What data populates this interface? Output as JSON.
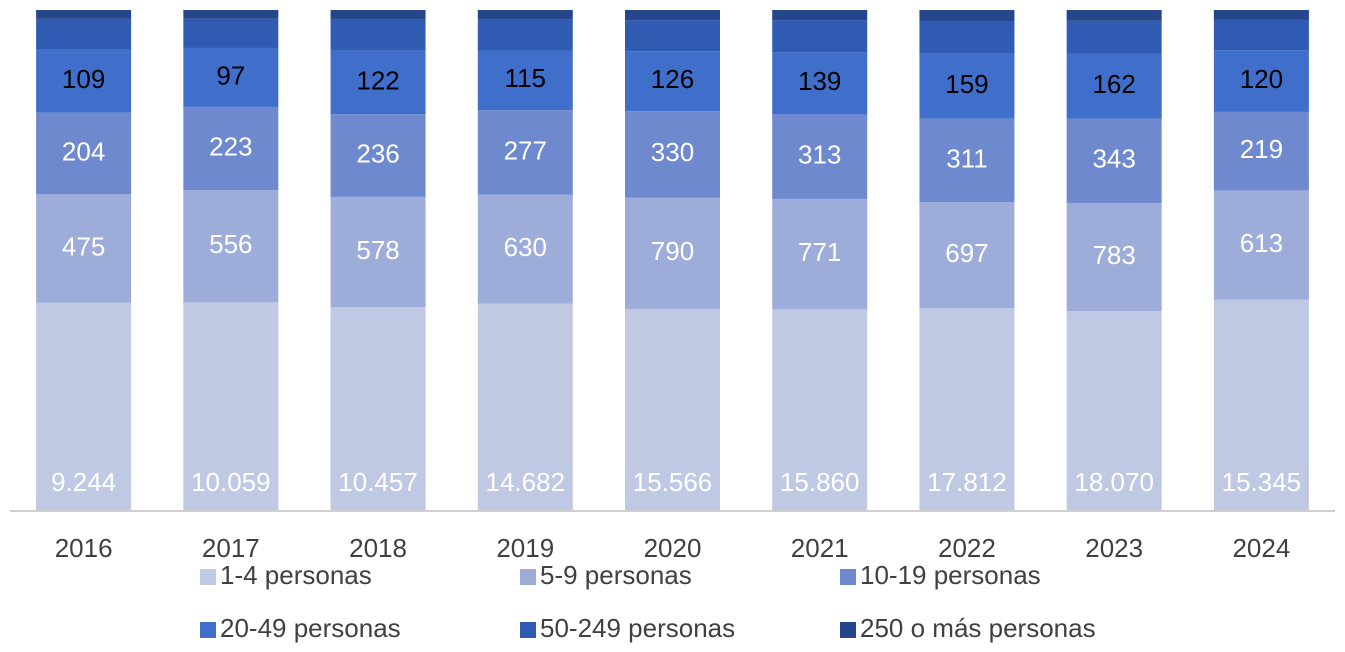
{
  "chart_data": {
    "type": "bar",
    "stacked": true,
    "categories": [
      "2016",
      "2017",
      "2018",
      "2019",
      "2020",
      "2021",
      "2022",
      "2023",
      "2024"
    ],
    "series": [
      {
        "name": "1-4 personas",
        "color": "#c0c9e4",
        "label_color": "#ffffff",
        "values": [
          9244,
          10059,
          10457,
          14682,
          15566,
          15860,
          17812,
          18070,
          15345
        ],
        "value_labels": [
          "9.244",
          "10.059",
          "10.457",
          "14.682",
          "15.566",
          "15.860",
          "17.812",
          "18.070",
          "15.345"
        ]
      },
      {
        "name": "5-9 personas",
        "color": "#9dacd9",
        "label_color": "#ffffff",
        "values": [
          475,
          556,
          578,
          630,
          790,
          771,
          697,
          783,
          613
        ]
      },
      {
        "name": "10-19 personas",
        "color": "#6f89cf",
        "label_color": "#ffffff",
        "values": [
          204,
          223,
          236,
          277,
          330,
          313,
          311,
          343,
          219
        ]
      },
      {
        "name": "20-49 personas",
        "color": "#3f6fcb",
        "label_color": "#000000",
        "values": [
          109,
          97,
          122,
          115,
          126,
          139,
          159,
          162,
          120
        ]
      },
      {
        "name": "50-249 personas",
        "color": "#2f5bb3",
        "values": [
          30,
          28,
          32,
          34,
          36,
          38,
          40,
          42,
          33
        ]
      },
      {
        "name": "250 o más personas",
        "color": "#25468a",
        "values": [
          6,
          6,
          7,
          7,
          8,
          8,
          9,
          9,
          7
        ]
      }
    ]
  }
}
